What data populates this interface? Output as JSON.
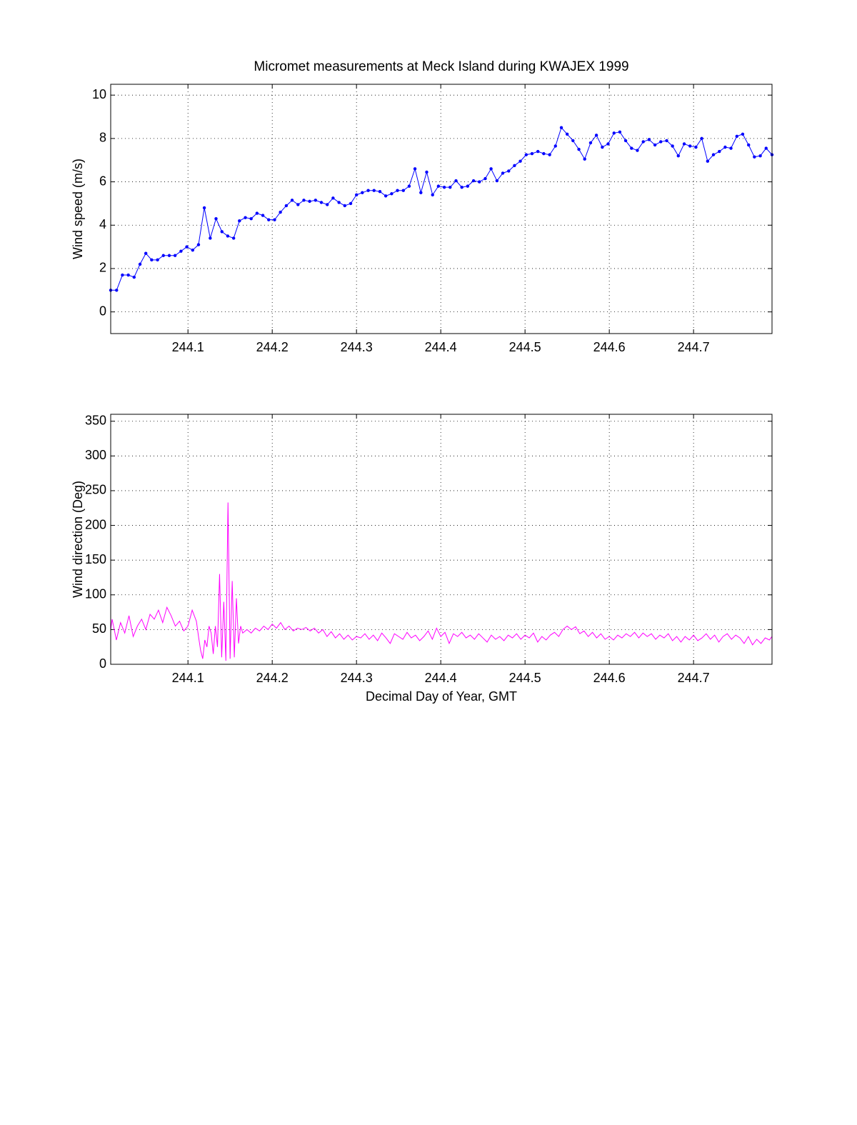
{
  "chart_data": [
    {
      "type": "line",
      "title": "Micromet measurements at Meck Island during KWAJEX 1999",
      "ylabel": "Wind speed (m/s)",
      "xlim": [
        244.0083,
        244.7931
      ],
      "xticks": [
        244.1,
        244.2,
        244.3,
        244.4,
        244.5,
        244.6,
        244.7
      ],
      "ylim": [
        -1,
        10.5
      ],
      "yticks": [
        0,
        2,
        4,
        6,
        8,
        10
      ],
      "grid": true,
      "x": [
        244.0083,
        244.0153,
        244.0222,
        244.0292,
        244.0361,
        244.0431,
        244.05,
        244.0569,
        244.0639,
        244.0708,
        244.0778,
        244.0847,
        244.0917,
        244.0986,
        244.1056,
        244.1125,
        244.1194,
        244.1264,
        244.1333,
        244.1403,
        244.1472,
        244.1542,
        244.1611,
        244.1681,
        244.175,
        244.1819,
        244.1889,
        244.1958,
        244.2028,
        244.2097,
        244.2167,
        244.2236,
        244.2306,
        244.2375,
        244.2444,
        244.2514,
        244.2583,
        244.2653,
        244.2722,
        244.2792,
        244.2861,
        244.2931,
        244.3,
        244.3069,
        244.3139,
        244.3208,
        244.3278,
        244.3347,
        244.3417,
        244.3486,
        244.3556,
        244.3625,
        244.3694,
        244.3764,
        244.3833,
        244.3903,
        244.3972,
        244.4042,
        244.4111,
        244.4181,
        244.425,
        244.4319,
        244.4389,
        244.4458,
        244.4528,
        244.4597,
        244.4667,
        244.4736,
        244.4806,
        244.4875,
        244.4944,
        244.5014,
        244.5083,
        244.5153,
        244.5222,
        244.5292,
        244.5361,
        244.5431,
        244.55,
        244.5569,
        244.5639,
        244.5708,
        244.5778,
        244.5847,
        244.5917,
        244.5986,
        244.6056,
        244.6125,
        244.6194,
        244.6264,
        244.6333,
        244.6403,
        244.6472,
        244.6542,
        244.6611,
        244.6681,
        244.675,
        244.6819,
        244.6889,
        244.6958,
        244.7028,
        244.7097,
        244.7167,
        244.7236,
        244.7306,
        244.7375,
        244.7444,
        244.7514,
        244.7583,
        244.7653,
        244.7722,
        244.7792,
        244.7861,
        244.7931
      ],
      "series": [
        {
          "name": "Wind speed",
          "color": "#0000ff",
          "markers": true,
          "values": [
            1.0,
            1.0,
            1.7,
            1.7,
            1.6,
            2.2,
            2.7,
            2.4,
            2.4,
            2.6,
            2.6,
            2.6,
            2.8,
            3.0,
            2.85,
            3.1,
            4.8,
            3.4,
            4.3,
            3.7,
            3.5,
            3.4,
            4.2,
            4.35,
            4.3,
            4.55,
            4.45,
            4.25,
            4.25,
            4.6,
            4.9,
            5.15,
            4.95,
            5.15,
            5.1,
            5.15,
            5.05,
            4.95,
            5.25,
            5.05,
            4.9,
            5.0,
            5.4,
            5.5,
            5.6,
            5.6,
            5.55,
            5.35,
            5.45,
            5.6,
            5.6,
            5.8,
            6.6,
            5.5,
            6.45,
            5.4,
            5.8,
            5.75,
            5.75,
            6.05,
            5.75,
            5.8,
            6.05,
            6.0,
            6.15,
            6.6,
            6.05,
            6.4,
            6.5,
            6.75,
            6.95,
            7.25,
            7.3,
            7.4,
            7.3,
            7.25,
            7.65,
            8.5,
            8.2,
            7.9,
            7.5,
            7.05,
            7.8,
            8.15,
            7.6,
            7.75,
            8.25,
            8.3,
            7.9,
            7.55,
            7.45,
            7.85,
            7.95,
            7.7,
            7.85,
            7.9,
            7.65,
            7.2,
            7.75,
            7.65,
            7.6,
            8.0,
            6.95,
            7.25,
            7.4,
            7.6,
            7.55,
            8.1,
            8.2,
            7.7,
            7.15,
            7.2,
            7.55,
            7.25
          ]
        }
      ]
    },
    {
      "type": "line",
      "ylabel": "Wind direction (Deg)",
      "xlabel": "Decimal Day of Year, GMT",
      "xlim": [
        244.0083,
        244.7931
      ],
      "xticks": [
        244.1,
        244.2,
        244.3,
        244.4,
        244.5,
        244.6,
        244.7
      ],
      "ylim": [
        0,
        360
      ],
      "yticks": [
        0,
        50,
        100,
        150,
        200,
        250,
        300,
        350
      ],
      "grid": true,
      "x": [
        244.0083,
        244.01,
        244.015,
        244.02,
        244.025,
        244.03,
        244.035,
        244.04,
        244.045,
        244.05,
        244.055,
        244.06,
        244.065,
        244.07,
        244.075,
        244.08,
        244.085,
        244.09,
        244.095,
        244.1,
        244.105,
        244.11,
        244.1125,
        244.115,
        244.1175,
        244.12,
        244.1225,
        244.125,
        244.1275,
        244.13,
        244.1325,
        244.135,
        244.1375,
        244.14,
        244.1425,
        244.145,
        244.1475,
        244.15,
        244.1525,
        244.155,
        244.1575,
        244.16,
        244.1625,
        244.165,
        244.17,
        244.175,
        244.18,
        244.185,
        244.19,
        244.195,
        244.2,
        244.205,
        244.21,
        244.215,
        244.22,
        244.225,
        244.23,
        244.235,
        244.24,
        244.245,
        244.25,
        244.255,
        244.26,
        244.265,
        244.27,
        244.275,
        244.28,
        244.285,
        244.29,
        244.295,
        244.3,
        244.305,
        244.31,
        244.315,
        244.32,
        244.325,
        244.33,
        244.335,
        244.34,
        244.345,
        244.35,
        244.355,
        244.36,
        244.365,
        244.37,
        244.375,
        244.38,
        244.385,
        244.39,
        244.395,
        244.4,
        244.405,
        244.41,
        244.415,
        244.42,
        244.425,
        244.43,
        244.435,
        244.44,
        244.445,
        244.45,
        244.455,
        244.46,
        244.465,
        244.47,
        244.475,
        244.48,
        244.485,
        244.49,
        244.495,
        244.5,
        244.505,
        244.51,
        244.515,
        244.52,
        244.525,
        244.53,
        244.535,
        244.54,
        244.545,
        244.55,
        244.555,
        244.56,
        244.565,
        244.57,
        244.575,
        244.58,
        244.585,
        244.59,
        244.595,
        244.6,
        244.605,
        244.61,
        244.615,
        244.62,
        244.625,
        244.63,
        244.635,
        244.64,
        244.645,
        244.65,
        244.655,
        244.66,
        244.665,
        244.67,
        244.675,
        244.68,
        244.685,
        244.69,
        244.695,
        244.7,
        244.705,
        244.71,
        244.715,
        244.72,
        244.725,
        244.73,
        244.735,
        244.74,
        244.745,
        244.75,
        244.755,
        244.76,
        244.765,
        244.77,
        244.775,
        244.78,
        244.785,
        244.79,
        244.7931
      ],
      "series": [
        {
          "name": "Wind direction",
          "color": "#ff00ff",
          "markers": false,
          "values": [
            50,
            65,
            35,
            60,
            45,
            70,
            40,
            55,
            65,
            50,
            72,
            65,
            78,
            60,
            82,
            70,
            55,
            62,
            48,
            55,
            78,
            62,
            40,
            20,
            8,
            35,
            25,
            55,
            45,
            15,
            55,
            25,
            130,
            10,
            90,
            5,
            233,
            8,
            120,
            10,
            95,
            30,
            55,
            45,
            50,
            45,
            52,
            48,
            55,
            50,
            58,
            52,
            60,
            50,
            55,
            48,
            52,
            50,
            53,
            48,
            52,
            45,
            50,
            40,
            47,
            38,
            44,
            36,
            42,
            35,
            40,
            38,
            44,
            36,
            42,
            34,
            45,
            38,
            30,
            44,
            40,
            36,
            46,
            38,
            42,
            34,
            40,
            48,
            36,
            52,
            40,
            46,
            30,
            44,
            40,
            46,
            38,
            42,
            36,
            44,
            38,
            32,
            42,
            36,
            40,
            34,
            42,
            38,
            44,
            36,
            42,
            38,
            45,
            32,
            40,
            35,
            42,
            46,
            40,
            50,
            55,
            50,
            54,
            44,
            48,
            40,
            46,
            38,
            44,
            36,
            40,
            35,
            42,
            38,
            44,
            40,
            46,
            38,
            45,
            40,
            44,
            36,
            42,
            38,
            44,
            34,
            40,
            32,
            40,
            35,
            42,
            34,
            38,
            44,
            36,
            42,
            32,
            40,
            44,
            36,
            42,
            38,
            30,
            40,
            28,
            36,
            30,
            38,
            35,
            40
          ]
        }
      ]
    }
  ]
}
